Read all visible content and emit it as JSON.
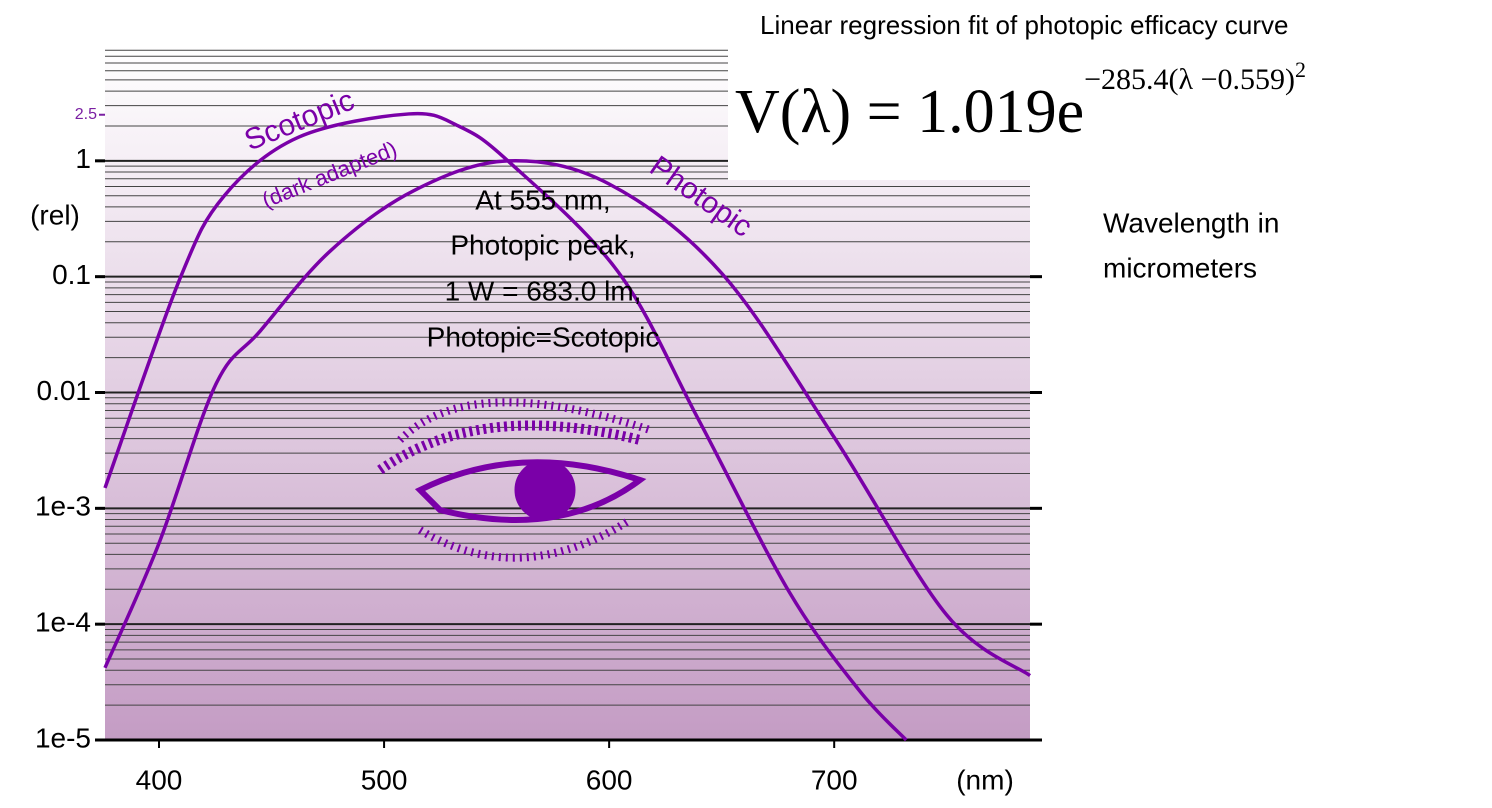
{
  "chart_data": {
    "type": "line",
    "yscale": "log",
    "xlim": [
      376,
      787
    ],
    "ylim": [
      1e-05,
      10
    ],
    "xticks": [
      400,
      500,
      600,
      700
    ],
    "yticks": [
      1,
      0.1,
      0.01,
      {
        "value": 0.001,
        "label": "1e-3"
      },
      {
        "value": 0.0001,
        "label": "1e-4"
      },
      {
        "value": 1e-05,
        "label": "1e-5"
      }
    ],
    "marker_tick": 2.5,
    "marker_tick_color": "#7a1fa2",
    "x_label": "(nm)",
    "y_label": "(rel)",
    "minor_grid": true,
    "series": [
      {
        "name": "Scotopic",
        "color": "#7a00a8",
        "x": [
          376,
          409,
          429,
          462,
          511,
          533,
          555,
          604,
          640,
          680,
          711,
          732
        ],
        "values": [
          0.0015,
          0.093,
          0.5,
          1.6,
          2.54,
          2.0,
          1.0,
          0.11,
          0.0057,
          0.00019,
          2.7e-05,
          1e-05
        ]
      },
      {
        "name": "Photopic",
        "color": "#7a00a8",
        "x": [
          376,
          400,
          425,
          445,
          476,
          513,
          555,
          600,
          650,
          700,
          750,
          787
        ],
        "values": [
          4.2e-05,
          0.0005,
          0.0115,
          0.034,
          0.166,
          0.55,
          1.0,
          0.631,
          0.107,
          0.0041,
          0.00012,
          3.6e-05
        ]
      }
    ],
    "annotations": [
      "(dark adapted)",
      "At 555 nm,",
      "Photopic peak,",
      "1 W = 683.0 lm,",
      "Photopic=Scotopic"
    ]
  },
  "formula": {
    "title": "Linear regression fit of photopic efficacy curve",
    "base": "V(λ) = 1.019e",
    "exponent": "−285.4(λ −0.559)",
    "power": "2"
  },
  "note": [
    "Wavelength in",
    "micrometers"
  ]
}
